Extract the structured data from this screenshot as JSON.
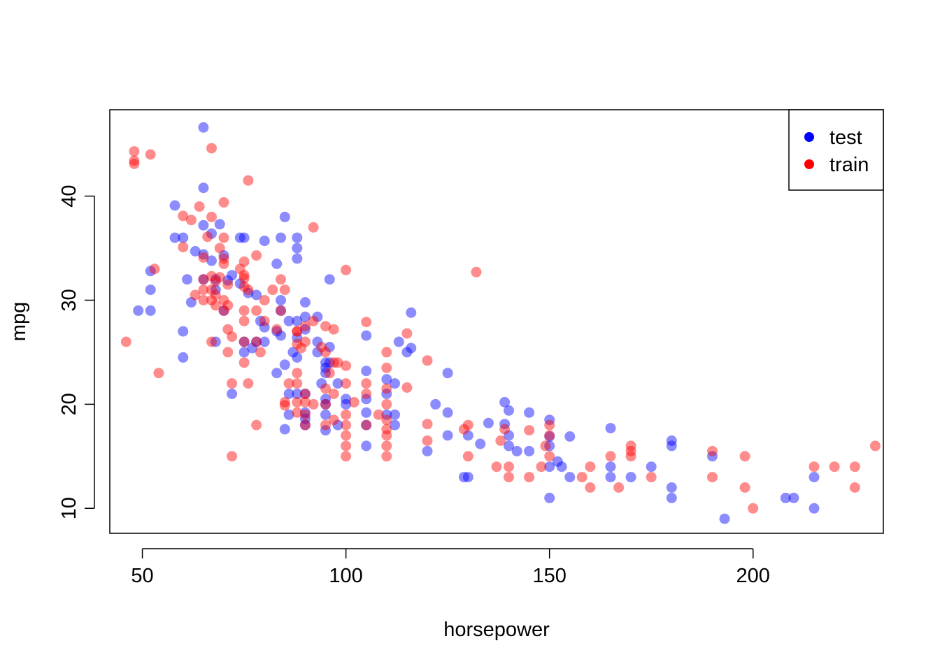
{
  "chart_data": {
    "type": "scatter",
    "title": "",
    "xlabel": "horsepower",
    "ylabel": "mpg",
    "xlim": [
      42,
      232
    ],
    "ylim": [
      7.6,
      48.3
    ],
    "xticks": [
      50,
      100,
      150,
      200
    ],
    "yticks": [
      10,
      20,
      30,
      40
    ],
    "grid": false,
    "legend": {
      "position": "top-right",
      "entries": [
        {
          "label": "test",
          "color": "#0000ff"
        },
        {
          "label": "train",
          "color": "#ff0000"
        }
      ]
    },
    "series": [
      {
        "name": "test",
        "color": "#0000ff",
        "opacity": 0.45,
        "points": [
          [
            65,
            46.6
          ],
          [
            65,
            40.8
          ],
          [
            58,
            39.1
          ],
          [
            69,
            37.3
          ],
          [
            65,
            37.2
          ],
          [
            67,
            36.4
          ],
          [
            58,
            36
          ],
          [
            60,
            36
          ],
          [
            74,
            36
          ],
          [
            75,
            36
          ],
          [
            88,
            36
          ],
          [
            85,
            38
          ],
          [
            84,
            36
          ],
          [
            80,
            35.7
          ],
          [
            88,
            35
          ],
          [
            63,
            34.7
          ],
          [
            65,
            34.4
          ],
          [
            70,
            34.3
          ],
          [
            88,
            34
          ],
          [
            67,
            33.8
          ],
          [
            83,
            33.5
          ],
          [
            52,
            32.8
          ],
          [
            72,
            32.4
          ],
          [
            96,
            32
          ],
          [
            61,
            32
          ],
          [
            65,
            32
          ],
          [
            68,
            32
          ],
          [
            71,
            31.9
          ],
          [
            74,
            31.6
          ],
          [
            52,
            31
          ],
          [
            68,
            31
          ],
          [
            76,
            30.7
          ],
          [
            78,
            30.5
          ],
          [
            84,
            30
          ],
          [
            62,
            29.8
          ],
          [
            90,
            29.8
          ],
          [
            49,
            29
          ],
          [
            52,
            29
          ],
          [
            70,
            29
          ],
          [
            84,
            29
          ],
          [
            93,
            28.4
          ],
          [
            90,
            28.4
          ],
          [
            86,
            28
          ],
          [
            88,
            28
          ],
          [
            79,
            28
          ],
          [
            116,
            28.8
          ],
          [
            80,
            27.4
          ],
          [
            90,
            27.2
          ],
          [
            60,
            27
          ],
          [
            83,
            27
          ],
          [
            84,
            26.6
          ],
          [
            105,
            26.6
          ],
          [
            68,
            26
          ],
          [
            75,
            26
          ],
          [
            78,
            26
          ],
          [
            80,
            26
          ],
          [
            93,
            26
          ],
          [
            113,
            26
          ],
          [
            88,
            26.4
          ],
          [
            96,
            25.5
          ],
          [
            116,
            25.4
          ],
          [
            77,
            25.4
          ],
          [
            75,
            25
          ],
          [
            87,
            25
          ],
          [
            93,
            25
          ],
          [
            115,
            25
          ],
          [
            60,
            24.5
          ],
          [
            88,
            24.5
          ],
          [
            95,
            24
          ],
          [
            96,
            24
          ],
          [
            85,
            23.8
          ],
          [
            95,
            23.5
          ],
          [
            105,
            23.2
          ],
          [
            125,
            23
          ],
          [
            83,
            23
          ],
          [
            95,
            23
          ],
          [
            110,
            22.4
          ],
          [
            94,
            22
          ],
          [
            98,
            22
          ],
          [
            112,
            22
          ],
          [
            72,
            21
          ],
          [
            86,
            21
          ],
          [
            88,
            21
          ],
          [
            90,
            21
          ],
          [
            110,
            21
          ],
          [
            95,
            20.5
          ],
          [
            100,
            20.5
          ],
          [
            105,
            20.5
          ],
          [
            139,
            20.2
          ],
          [
            95,
            20
          ],
          [
            100,
            20
          ],
          [
            122,
            20
          ],
          [
            140,
            19.4
          ],
          [
            145,
            19.2
          ],
          [
            90,
            19.2
          ],
          [
            105,
            19.2
          ],
          [
            125,
            19.2
          ],
          [
            95,
            19
          ],
          [
            110,
            19
          ],
          [
            112,
            19
          ],
          [
            86,
            19
          ],
          [
            90,
            18.6
          ],
          [
            150,
            18.5
          ],
          [
            135,
            18.2
          ],
          [
            90,
            18
          ],
          [
            98,
            18
          ],
          [
            105,
            18
          ],
          [
            112,
            18
          ],
          [
            139,
            18.1
          ],
          [
            165,
            17.7
          ],
          [
            85,
            17.6
          ],
          [
            95,
            17.5
          ],
          [
            140,
            17
          ],
          [
            155,
            16.9
          ],
          [
            150,
            16.9
          ],
          [
            125,
            17
          ],
          [
            130,
            17
          ],
          [
            180,
            16.5
          ],
          [
            133,
            16.2
          ],
          [
            180,
            16
          ],
          [
            140,
            16
          ],
          [
            105,
            16
          ],
          [
            150,
            16
          ],
          [
            120,
            15.5
          ],
          [
            142,
            15.5
          ],
          [
            145,
            15.5
          ],
          [
            190,
            15
          ],
          [
            152,
            14.5
          ],
          [
            153,
            14
          ],
          [
            165,
            14
          ],
          [
            175,
            14
          ],
          [
            150,
            14
          ],
          [
            155,
            13
          ],
          [
            129,
            13
          ],
          [
            130,
            13
          ],
          [
            165,
            13
          ],
          [
            170,
            13
          ],
          [
            215,
            13
          ],
          [
            180,
            12
          ],
          [
            150,
            11
          ],
          [
            180,
            11
          ],
          [
            208,
            11
          ],
          [
            210,
            11
          ],
          [
            215,
            10
          ],
          [
            193,
            9
          ]
        ]
      },
      {
        "name": "train",
        "color": "#ff0000",
        "opacity": 0.45,
        "points": [
          [
            48,
            44.3
          ],
          [
            52,
            44
          ],
          [
            48,
            43.4
          ],
          [
            48,
            43.1
          ],
          [
            67,
            44.6
          ],
          [
            76,
            41.5
          ],
          [
            70,
            39.4
          ],
          [
            64,
            39
          ],
          [
            67,
            38
          ],
          [
            60,
            38.1
          ],
          [
            62,
            37.7
          ],
          [
            92,
            37
          ],
          [
            66,
            36.1
          ],
          [
            70,
            36
          ],
          [
            60,
            35.1
          ],
          [
            69,
            35
          ],
          [
            78,
            34.3
          ],
          [
            70,
            34
          ],
          [
            75,
            33.7
          ],
          [
            65,
            34.1
          ],
          [
            70,
            33.5
          ],
          [
            53,
            33
          ],
          [
            100,
            32.9
          ],
          [
            132,
            32.7
          ],
          [
            74,
            33
          ],
          [
            75,
            32.4
          ],
          [
            67,
            32.3
          ],
          [
            75,
            32.1
          ],
          [
            69,
            32.2
          ],
          [
            65,
            32
          ],
          [
            84,
            32
          ],
          [
            68,
            31.8
          ],
          [
            71,
            31.5
          ],
          [
            75,
            31.3
          ],
          [
            76,
            31
          ],
          [
            65,
            31
          ],
          [
            67,
            31
          ],
          [
            85,
            31
          ],
          [
            82,
            31
          ],
          [
            68,
            30.5
          ],
          [
            63,
            30.5
          ],
          [
            70,
            30
          ],
          [
            65,
            30
          ],
          [
            80,
            30
          ],
          [
            67,
            30
          ],
          [
            68,
            29.5
          ],
          [
            71,
            29.5
          ],
          [
            75,
            29
          ],
          [
            78,
            29
          ],
          [
            70,
            29
          ],
          [
            84,
            29
          ],
          [
            92,
            28
          ],
          [
            80,
            28
          ],
          [
            75,
            28
          ],
          [
            95,
            27.5
          ],
          [
            105,
            27.9
          ],
          [
            97,
            27.2
          ],
          [
            88,
            27
          ],
          [
            83,
            27.2
          ],
          [
            71,
            27.2
          ],
          [
            115,
            26.8
          ],
          [
            72,
            26.5
          ],
          [
            78,
            26
          ],
          [
            88,
            25.8
          ],
          [
            90,
            26
          ],
          [
            67,
            26
          ],
          [
            75,
            26
          ],
          [
            89,
            25.4
          ],
          [
            94,
            25.5
          ],
          [
            79,
            25
          ],
          [
            71,
            25
          ],
          [
            95,
            25
          ],
          [
            110,
            25
          ],
          [
            120,
            24.2
          ],
          [
            97,
            24
          ],
          [
            98,
            24
          ],
          [
            100,
            23.7
          ],
          [
            110,
            23.5
          ],
          [
            54,
            23
          ],
          [
            88,
            23
          ],
          [
            96,
            23
          ],
          [
            76,
            22
          ],
          [
            72,
            22
          ],
          [
            86,
            22
          ],
          [
            88,
            22
          ],
          [
            100,
            22
          ],
          [
            105,
            22
          ],
          [
            95,
            21.5
          ],
          [
            110,
            21.5
          ],
          [
            115,
            21.6
          ],
          [
            90,
            21
          ],
          [
            105,
            21
          ],
          [
            97,
            21
          ],
          [
            85,
            20.2
          ],
          [
            88,
            20.2
          ],
          [
            90,
            20.2
          ],
          [
            92,
            20
          ],
          [
            95,
            20
          ],
          [
            102,
            20.2
          ],
          [
            110,
            20
          ],
          [
            88,
            19.2
          ],
          [
            85,
            19.9
          ],
          [
            100,
            19
          ],
          [
            90,
            19
          ],
          [
            108,
            19
          ],
          [
            97,
            18.5
          ],
          [
            110,
            18.5
          ],
          [
            78,
            18
          ],
          [
            90,
            18
          ],
          [
            95,
            18
          ],
          [
            100,
            18
          ],
          [
            105,
            18
          ],
          [
            120,
            18.1
          ],
          [
            130,
            18
          ],
          [
            150,
            18
          ],
          [
            110,
            17.6
          ],
          [
            129,
            17.6
          ],
          [
            139,
            17.6
          ],
          [
            145,
            17.5
          ],
          [
            100,
            17
          ],
          [
            110,
            17
          ],
          [
            150,
            17
          ],
          [
            138,
            16.5
          ],
          [
            120,
            16.5
          ],
          [
            100,
            16
          ],
          [
            110,
            16
          ],
          [
            149,
            16
          ],
          [
            170,
            16
          ],
          [
            230,
            16
          ],
          [
            190,
            15.5
          ],
          [
            170,
            15.5
          ],
          [
            100,
            15
          ],
          [
            110,
            15
          ],
          [
            130,
            15
          ],
          [
            150,
            15
          ],
          [
            165,
            15
          ],
          [
            170,
            15
          ],
          [
            198,
            15
          ],
          [
            137,
            14
          ],
          [
            140,
            14
          ],
          [
            148,
            14
          ],
          [
            160,
            14
          ],
          [
            215,
            14
          ],
          [
            220,
            14
          ],
          [
            225,
            14
          ],
          [
            140,
            13
          ],
          [
            145,
            13
          ],
          [
            158,
            13
          ],
          [
            175,
            13
          ],
          [
            190,
            13
          ],
          [
            160,
            12
          ],
          [
            167,
            12
          ],
          [
            198,
            12
          ],
          [
            225,
            12
          ],
          [
            200,
            10
          ],
          [
            72,
            15
          ],
          [
            46,
            26
          ],
          [
            75,
            24
          ],
          [
            90,
            27.5
          ],
          [
            88,
            27
          ]
        ]
      }
    ]
  }
}
